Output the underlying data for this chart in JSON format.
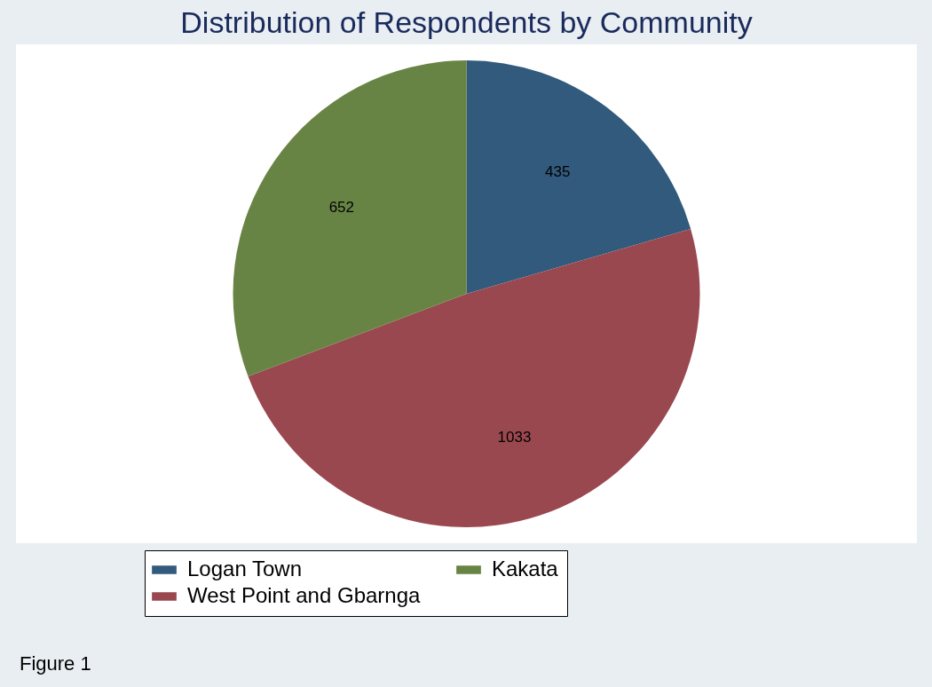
{
  "chart_data": {
    "type": "pie",
    "title": "Distribution of Respondents by Community",
    "categories": [
      "Logan Town",
      "West Point and Gbarnga",
      "Kakata"
    ],
    "values": [
      435,
      1033,
      652
    ],
    "colors": [
      "#325a7d",
      "#9a484f",
      "#688444"
    ],
    "data_labels": true,
    "legend": "bottom",
    "annotations": [
      "Figure 1"
    ]
  }
}
